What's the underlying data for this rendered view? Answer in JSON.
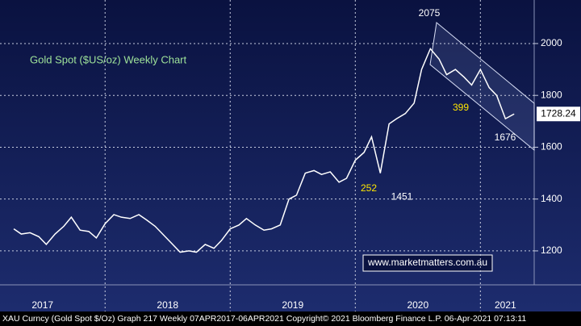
{
  "chart_data": {
    "type": "line",
    "title": "Gold Spot ($US/oz) Weekly Chart",
    "x": [
      2017.27,
      2017.33,
      2017.4,
      2017.47,
      2017.53,
      2017.6,
      2017.67,
      2017.73,
      2017.8,
      2017.87,
      2017.93,
      2018.0,
      2018.07,
      2018.13,
      2018.2,
      2018.27,
      2018.33,
      2018.4,
      2018.47,
      2018.53,
      2018.6,
      2018.67,
      2018.73,
      2018.8,
      2018.87,
      2018.93,
      2019.0,
      2019.07,
      2019.13,
      2019.2,
      2019.27,
      2019.33,
      2019.4,
      2019.47,
      2019.53,
      2019.6,
      2019.67,
      2019.73,
      2019.8,
      2019.87,
      2019.93,
      2020.0,
      2020.07,
      2020.13,
      2020.2,
      2020.27,
      2020.33,
      2020.4,
      2020.47,
      2020.53,
      2020.6,
      2020.67,
      2020.73,
      2020.8,
      2020.87,
      2020.93,
      2021.0,
      2021.07,
      2021.13,
      2021.2,
      2021.27
    ],
    "series": [
      {
        "name": "XAU Curncy",
        "color": "#ffffff",
        "values": [
          1285,
          1265,
          1270,
          1255,
          1225,
          1265,
          1295,
          1330,
          1280,
          1275,
          1250,
          1305,
          1340,
          1330,
          1325,
          1340,
          1320,
          1295,
          1260,
          1230,
          1195,
          1200,
          1195,
          1225,
          1210,
          1240,
          1285,
          1300,
          1325,
          1300,
          1280,
          1285,
          1300,
          1400,
          1415,
          1500,
          1510,
          1495,
          1505,
          1465,
          1480,
          1550,
          1580,
          1640,
          1500,
          1690,
          1710,
          1730,
          1770,
          1900,
          1980,
          1940,
          1880,
          1900,
          1870,
          1840,
          1900,
          1830,
          1800,
          1710,
          1728.24
        ]
      }
    ],
    "xlim": [
      2017.16,
      2021.43
    ],
    "xticks": [
      2018,
      2019,
      2020,
      2021
    ],
    "year_labels": [
      {
        "value": 2017.5,
        "label": "2017"
      },
      {
        "value": 2018.5,
        "label": "2018"
      },
      {
        "value": 2019.5,
        "label": "2019"
      },
      {
        "value": 2020.5,
        "label": "2020"
      },
      {
        "value": 2021.2,
        "label": "2021"
      }
    ],
    "ylim": [
      1069,
      2168
    ],
    "yticks": [
      1200,
      1400,
      1600,
      1800,
      2000
    ],
    "grid": true,
    "peak_labels": [
      2075,
      1676,
      1451
    ],
    "move_labels": [
      252,
      399
    ],
    "watermark": "www.marketmatters.com.au",
    "footer": "XAU Curncy (Gold Spot  $/Oz) Graph 217  Weekly 07APR2017-06APR2021 Copyright© 2021 Bloomberg Finance L.P.  06-Apr-2021 07:13:11"
  }
}
